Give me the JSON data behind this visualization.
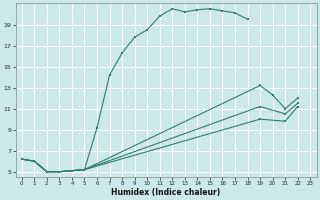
{
  "xlabel": "Humidex (Indice chaleur)",
  "bg_color": "#cce8e8",
  "grid_color": "#b0d4d4",
  "line_color": "#2e7d6e",
  "xlim": [
    -0.5,
    23.5
  ],
  "ylim": [
    4.5,
    21.0
  ],
  "xticks": [
    0,
    1,
    2,
    3,
    4,
    5,
    6,
    7,
    8,
    9,
    10,
    11,
    12,
    13,
    14,
    15,
    16,
    17,
    18,
    19,
    20,
    21,
    22,
    23
  ],
  "yticks": [
    5,
    7,
    9,
    11,
    13,
    15,
    17,
    19
  ],
  "series": [
    {
      "x": [
        0,
        1,
        2,
        3,
        4,
        5,
        6,
        7,
        8,
        9,
        10,
        11,
        12,
        13,
        14,
        15,
        16,
        17,
        18
      ],
      "y": [
        6.2,
        6.0,
        5.0,
        5.0,
        5.1,
        5.2,
        9.2,
        14.2,
        16.3,
        17.8,
        18.5,
        19.8,
        20.5,
        20.2,
        20.4,
        20.5,
        20.3,
        20.1,
        19.5
      ]
    },
    {
      "x": [
        0,
        1,
        2,
        3,
        4,
        5,
        19,
        20,
        21,
        22
      ],
      "y": [
        6.2,
        6.0,
        5.0,
        5.0,
        5.1,
        5.2,
        13.2,
        12.3,
        11.0,
        12.0
      ]
    },
    {
      "x": [
        0,
        1,
        2,
        3,
        4,
        5,
        19,
        21,
        22
      ],
      "y": [
        6.2,
        6.0,
        5.0,
        5.0,
        5.1,
        5.2,
        11.2,
        10.5,
        11.5
      ]
    },
    {
      "x": [
        0,
        1,
        2,
        3,
        4,
        5,
        19,
        21,
        22
      ],
      "y": [
        6.2,
        6.0,
        5.0,
        5.0,
        5.1,
        5.2,
        10.0,
        9.8,
        11.2
      ]
    }
  ]
}
